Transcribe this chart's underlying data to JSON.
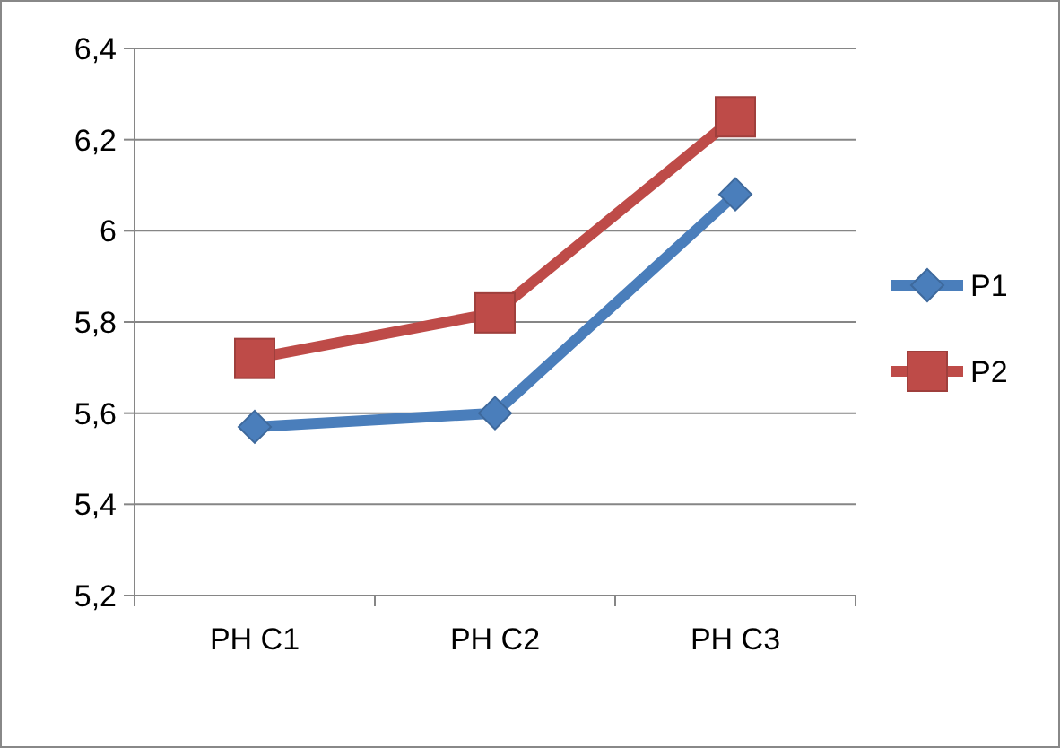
{
  "chart_data": {
    "type": "line",
    "categories": [
      "PH C1",
      "PH C2",
      "PH C3"
    ],
    "series": [
      {
        "name": "P1",
        "color": "#4a7ebb",
        "marker": "diamond",
        "values": [
          5.57,
          5.6,
          6.08
        ]
      },
      {
        "name": "P2",
        "color": "#be4b48",
        "marker": "square",
        "values": [
          5.72,
          5.82,
          6.25
        ]
      }
    ],
    "ylim": [
      5.2,
      6.4
    ],
    "yticks": [
      {
        "value": 5.2,
        "label": "5,2"
      },
      {
        "value": 5.4,
        "label": "5,4"
      },
      {
        "value": 5.6,
        "label": "5,6"
      },
      {
        "value": 5.8,
        "label": "5,8"
      },
      {
        "value": 6,
        "label": "6"
      },
      {
        "value": 6.2,
        "label": "6,2"
      },
      {
        "value": 6.4,
        "label": "6,4"
      }
    ],
    "grid": "y",
    "legend": "right",
    "line_style": "solid"
  }
}
